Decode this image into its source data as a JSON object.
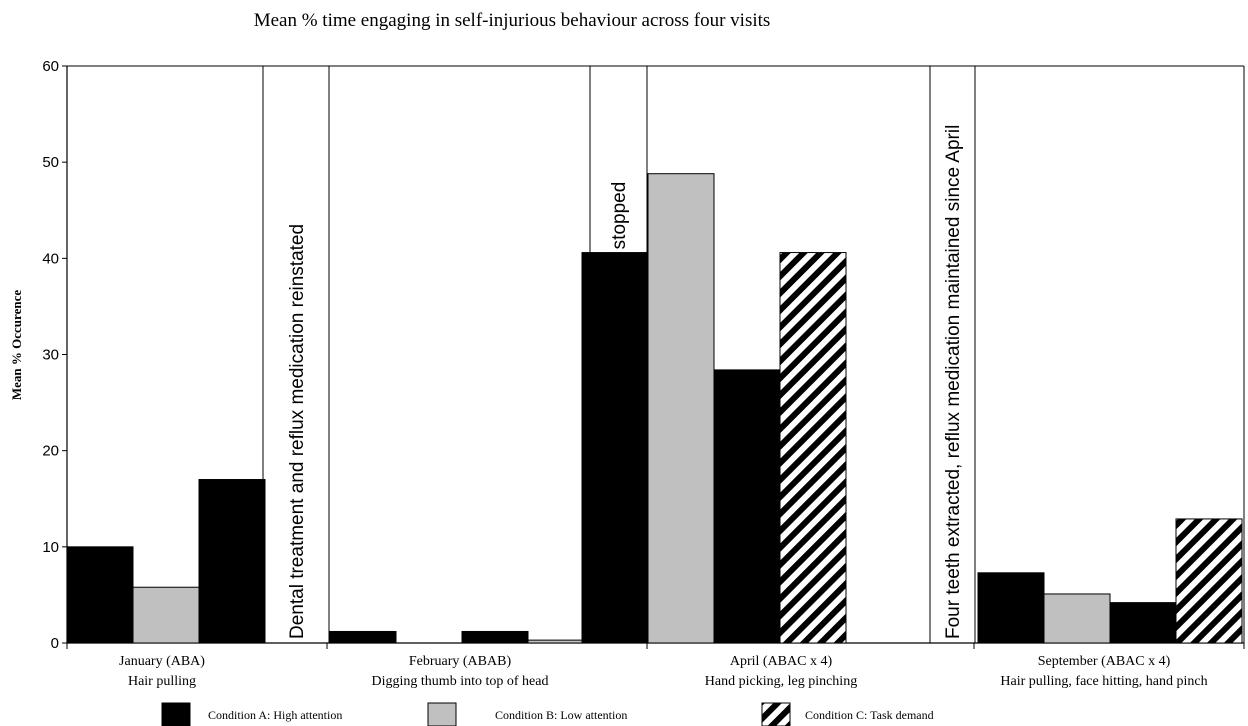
{
  "chart_data": {
    "type": "bar",
    "title": "Mean % time engaging in self-injurious behaviour across four visits",
    "ylabel": "Mean % Occurence",
    "ylim": [
      0,
      60
    ],
    "yticks": [
      0,
      10,
      20,
      30,
      40,
      50,
      60
    ],
    "grid": false,
    "legend_position": "bottom",
    "colors": {
      "A": "#000000",
      "B": "#c0c0c0",
      "C": "hatch-black-white"
    },
    "legend": [
      {
        "key": "A",
        "label": "Condition A: High attention"
      },
      {
        "key": "B",
        "label": "Condition B: Low attention"
      },
      {
        "key": "C",
        "label": "Condition C: Task demand"
      }
    ],
    "groups": [
      {
        "label1": "January  (ABA)",
        "label2": "Hair pulling",
        "bars": [
          {
            "condition": "A",
            "value": 10
          },
          {
            "condition": "B",
            "value": 5.8
          },
          {
            "condition": "A",
            "value": 17
          }
        ]
      },
      {
        "label1": "February (ABAB)",
        "label2": "Digging thumb into top of head",
        "bars": [
          {
            "condition": "A",
            "value": 1.2
          },
          {
            "condition": "B",
            "value": 0
          },
          {
            "condition": "A",
            "value": 1.2
          },
          {
            "condition": "B",
            "value": 0.3
          }
        ]
      },
      {
        "label1": "April (ABAC x 4)",
        "label2": "Hand picking, leg pinching",
        "bars": [
          {
            "condition": "A",
            "value": 40.6
          },
          {
            "condition": "B",
            "value": 48.8
          },
          {
            "condition": "A",
            "value": 28.4
          },
          {
            "condition": "C",
            "value": 40.6
          }
        ]
      },
      {
        "label1": "September (ABAC x 4)",
        "label2": "Hair pulling, face hitting, hand pinch",
        "bars": [
          {
            "condition": "A",
            "value": 7.3
          },
          {
            "condition": "B",
            "value": 5.1
          },
          {
            "condition": "A",
            "value": 4.2
          },
          {
            "condition": "C",
            "value": 12.9
          }
        ]
      }
    ],
    "annotations": [
      "Dental treatment and reflux medication reinstated",
      "Temporary fillings loosened, reflux medication stopped",
      "Four teeth extracted, reflux medication maintained since April"
    ]
  }
}
